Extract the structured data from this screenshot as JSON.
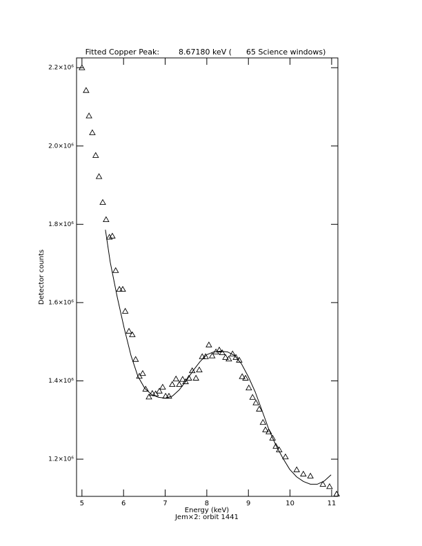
{
  "chart_data": {
    "type": "scatter",
    "title": "Fitted Copper Peak:        8.67180 keV (      65 Science windows)",
    "x_label": "Energy (keV)",
    "subtitle": "Jem×2: orbit 1441",
    "y_label": "Detector counts",
    "xlim": [
      4.87,
      11.15
    ],
    "ylim": [
      1105000,
      2225000
    ],
    "xticks": [
      5,
      6,
      7,
      8,
      9,
      10,
      11
    ],
    "yticks": [
      {
        "value": 1200000,
        "label": "1.2×10⁶"
      },
      {
        "value": 1400000,
        "label": "1.4×10⁶"
      },
      {
        "value": 1600000,
        "label": "1.6×10⁶"
      },
      {
        "value": 1800000,
        "label": "1.8×10⁶"
      },
      {
        "value": 2000000,
        "label": "2.0×10⁶"
      },
      {
        "value": 2200000,
        "label": "2.2×10⁶"
      }
    ],
    "series": [
      {
        "marker": "triangle",
        "color": "#000000",
        "x": [
          5.0,
          5.1,
          5.17,
          5.25,
          5.33,
          5.41,
          5.5,
          5.58,
          5.66,
          5.73,
          5.81,
          5.9,
          5.98,
          6.04,
          6.13,
          6.21,
          6.29,
          6.38,
          6.46,
          6.53,
          6.61,
          6.69,
          6.77,
          6.86,
          6.94,
          7.01,
          7.09,
          7.17,
          7.26,
          7.34,
          7.42,
          7.49,
          7.57,
          7.65,
          7.74,
          7.82,
          7.89,
          7.97,
          8.05,
          8.13,
          8.22,
          8.3,
          8.37,
          8.45,
          8.53,
          8.62,
          8.7,
          8.78,
          8.85,
          8.93,
          9.01,
          9.1,
          9.18,
          9.26,
          9.35,
          9.41,
          9.49,
          9.58,
          9.66,
          9.74,
          9.89,
          10.16,
          10.32,
          10.49,
          10.79,
          10.95,
          11.12
        ],
        "values": [
          2200000,
          2142000,
          2077000,
          2034000,
          1976000,
          1922000,
          1856000,
          1812000,
          1767000,
          1770000,
          1682000,
          1634000,
          1634000,
          1578000,
          1527000,
          1518000,
          1455000,
          1412000,
          1419000,
          1379000,
          1359000,
          1368000,
          1367000,
          1374000,
          1384000,
          1361000,
          1361000,
          1391000,
          1405000,
          1391000,
          1404000,
          1398000,
          1407000,
          1426000,
          1407000,
          1428000,
          1462000,
          1462000,
          1492000,
          1464000,
          1474000,
          1479000,
          1472000,
          1460000,
          1456000,
          1469000,
          1460000,
          1453000,
          1411000,
          1407000,
          1382000,
          1358000,
          1344000,
          1328000,
          1294000,
          1275000,
          1270000,
          1254000,
          1233000,
          1224000,
          1206000,
          1173000,
          1162000,
          1157000,
          1136000,
          1130000,
          1111000
        ]
      },
      {
        "style": "line",
        "color": "#000000",
        "x": [
          5.564,
          5.68,
          5.846,
          6.012,
          6.178,
          6.343,
          6.509,
          6.675,
          6.841,
          7.007,
          7.172,
          7.338,
          7.504,
          7.67,
          7.836,
          8.002,
          8.167,
          8.333,
          8.499,
          8.665,
          8.831,
          8.997,
          9.163,
          9.328,
          9.494,
          9.66,
          9.826,
          9.992,
          10.158,
          10.323,
          10.489,
          10.655,
          10.821,
          10.987
        ],
        "values": [
          1786000,
          1703000,
          1615000,
          1536000,
          1465000,
          1412000,
          1381000,
          1365000,
          1358000,
          1356000,
          1361000,
          1377000,
          1400000,
          1426000,
          1449000,
          1467000,
          1474000,
          1476000,
          1474000,
          1465000,
          1444000,
          1411000,
          1372000,
          1324000,
          1275000,
          1236000,
          1203000,
          1174000,
          1155000,
          1143000,
          1136000,
          1136000,
          1144000,
          1160000
        ]
      }
    ]
  }
}
